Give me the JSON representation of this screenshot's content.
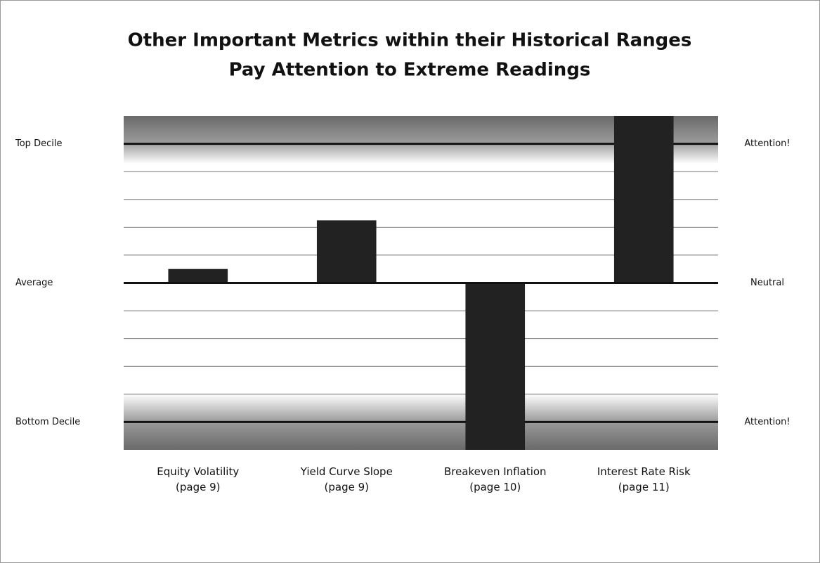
{
  "chart_data": {
    "type": "bar",
    "title": "Other Important Metrics within their Historical Ranges",
    "subtitle": "Pay Attention to Extreme Readings",
    "categories": [
      "Equity Volatility\n(page 9)",
      "Yield Curve Slope\n(page 9)",
      "Breakeven Inflation\n(page 10)",
      "Interest Rate Risk\n(page 11)"
    ],
    "values": [
      0.5,
      2.25,
      -6,
      6
    ],
    "color": "#222222",
    "ylim": [
      -6,
      6
    ],
    "yticks": [
      {
        "value": 5,
        "label": "Top Decile"
      },
      {
        "value": 0,
        "label": "Average"
      },
      {
        "value": -5,
        "label": "Bottom Decile"
      }
    ],
    "y2lim": [
      -6,
      6
    ],
    "y2ticks": [
      {
        "value": 5,
        "label": "Attention!"
      },
      {
        "value": 0,
        "label": "Neutral"
      },
      {
        "value": -5,
        "label": "Attention!"
      }
    ],
    "gridlines": [
      -5,
      -4,
      -3,
      -2,
      -1,
      0,
      1,
      2,
      3,
      4,
      5
    ],
    "grid": true
  }
}
